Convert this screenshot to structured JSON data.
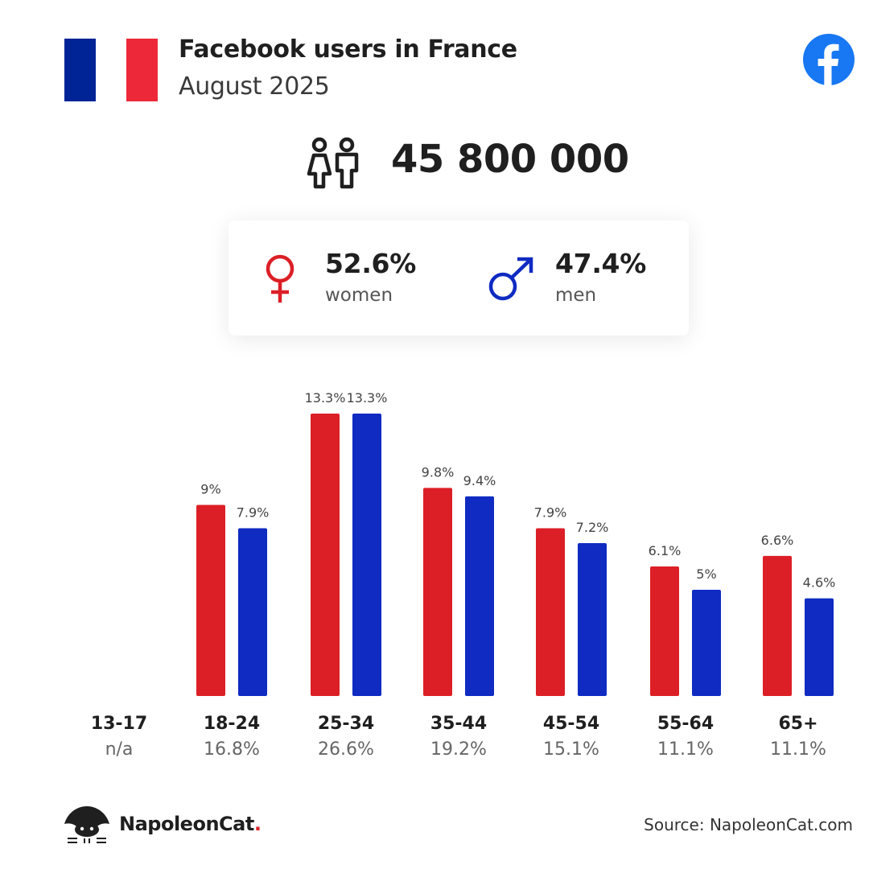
{
  "header": {
    "title": "Facebook users in France",
    "subtitle": "August 2025",
    "flag_colors": [
      "#002395",
      "#ffffff",
      "#ed2939"
    ],
    "platform_icon": "facebook-logo-icon",
    "brand_color": "#1877f2"
  },
  "total": {
    "icon": "people-icon",
    "value": "45 800 000"
  },
  "gender": {
    "women": {
      "icon": "female-symbol-icon",
      "pct": "52.6%",
      "label": "women",
      "color": "#dc1f26"
    },
    "men": {
      "icon": "male-symbol-icon",
      "pct": "47.4%",
      "label": "men",
      "color": "#0f2bc2"
    }
  },
  "chart_data": {
    "type": "bar",
    "categories": [
      "13-17",
      "18-24",
      "25-34",
      "35-44",
      "45-54",
      "55-64",
      "65+"
    ],
    "category_totals": [
      "n/a",
      "16.8%",
      "26.6%",
      "19.2%",
      "15.1%",
      "11.1%",
      "11.1%"
    ],
    "series": [
      {
        "name": "women",
        "color": "#dc1f26",
        "values": [
          null,
          9,
          13.3,
          9.8,
          7.9,
          6.1,
          6.6
        ],
        "labels": [
          "",
          "9%",
          "13.3%",
          "9.8%",
          "7.9%",
          "6.1%",
          "6.6%"
        ]
      },
      {
        "name": "men",
        "color": "#0f2bc2",
        "values": [
          null,
          7.9,
          13.3,
          9.4,
          7.2,
          5,
          4.6
        ],
        "labels": [
          "",
          "7.9%",
          "13.3%",
          "9.4%",
          "7.2%",
          "5%",
          "4.6%"
        ]
      }
    ],
    "ylim": [
      0,
      13.3
    ],
    "grid": false,
    "title": "",
    "xlabel": "",
    "ylabel": ""
  },
  "footer": {
    "brand_name": "NapoleonCat",
    "brand_dot": ".",
    "brand_icon": "napoleoncat-logo-icon",
    "source": "Source: NapoleonCat.com"
  }
}
